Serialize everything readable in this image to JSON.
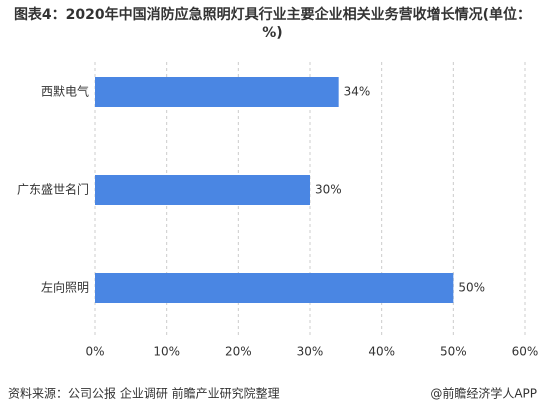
{
  "chart_data": {
    "type": "hbar",
    "title": "图表4：2020年中国消防应急照明灯具行业主要企业相关业务营收增长情况(单位：%)",
    "categories": [
      "西默电气",
      "广东盛世名门",
      "左向照明"
    ],
    "values": [
      34,
      30,
      50
    ],
    "value_labels": [
      "34%",
      "30%",
      "50%"
    ],
    "color": "#4a86e3",
    "xlim": [
      0,
      60
    ],
    "xticks": [
      {
        "value": 0,
        "label": "0%"
      },
      {
        "value": 10,
        "label": "10%"
      },
      {
        "value": 20,
        "label": "20%"
      },
      {
        "value": 30,
        "label": "30%"
      },
      {
        "value": 40,
        "label": "40%"
      },
      {
        "value": 50,
        "label": "50%"
      },
      {
        "value": 60,
        "label": "60%"
      }
    ],
    "grid": true,
    "source": "资料来源：公司公报 企业调研 前瞻产业研究院整理",
    "brand": "@前瞻经济学人APP"
  }
}
